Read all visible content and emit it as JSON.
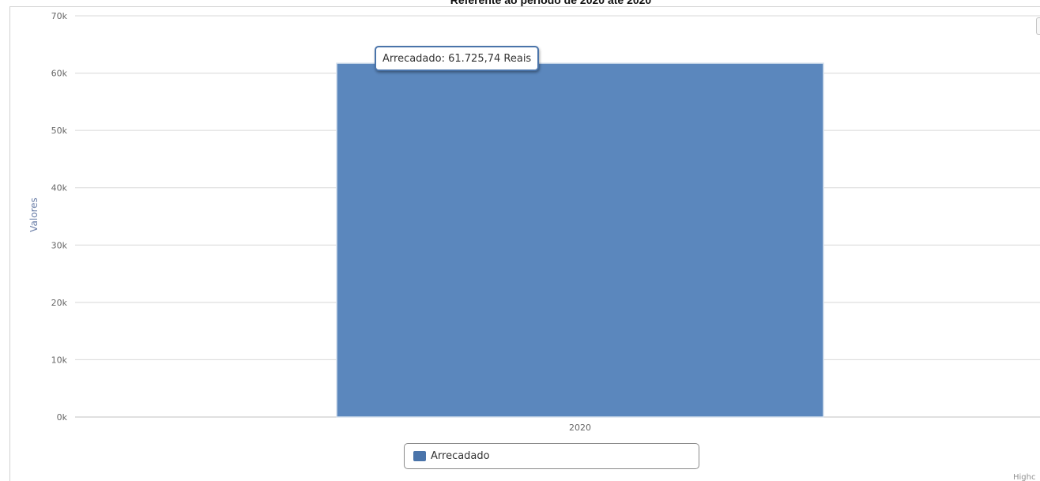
{
  "chart_data": {
    "type": "bar",
    "title": "Referente ao período de 2020 até 2020",
    "categories": [
      "2020"
    ],
    "series": [
      {
        "name": "Arrecadado",
        "values": [
          61725.74
        ],
        "color": "#5b87bd"
      }
    ],
    "ylabel": "Valores",
    "xlabel": "",
    "ylim": [
      0,
      70000
    ],
    "yticks": [
      "0k",
      "10k",
      "20k",
      "30k",
      "40k",
      "50k",
      "60k",
      "70k"
    ],
    "grid": true,
    "legend": "bottom-center",
    "tooltip": "Arrecadado: 61.725,74 Reais",
    "credits": "Highc"
  },
  "colors": {
    "bar": "#5b87bd",
    "bar_border": "#d8e2ee",
    "legend_swatch": "#4a74aa",
    "grid": "#d8d8d8",
    "axis_title": "#6b7fa8"
  }
}
